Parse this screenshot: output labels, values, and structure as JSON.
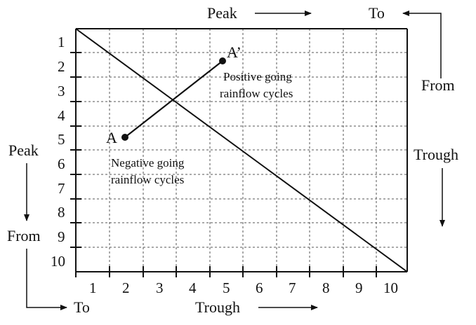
{
  "labels": {
    "peak_top": "Peak",
    "to_top": "To",
    "from_right": "From",
    "trough_right": "Trough",
    "peak_left": "Peak",
    "from_left": "From",
    "to_bottom": "To",
    "trough_bottom": "Trough"
  },
  "point_a": {
    "label": "A"
  },
  "point_a_prime": {
    "label": "A’"
  },
  "notes": {
    "positive_line1": "Positive going",
    "positive_line2": "rainflow cycles",
    "negative_line1": "Negative going",
    "negative_line2": "rainflow cycles"
  },
  "rows": [
    "1",
    "2",
    "3",
    "4",
    "5",
    "6",
    "7",
    "8",
    "9",
    "10"
  ],
  "cols": [
    "1",
    "2",
    "3",
    "4",
    "5",
    "6",
    "7",
    "8",
    "9",
    "10"
  ]
}
